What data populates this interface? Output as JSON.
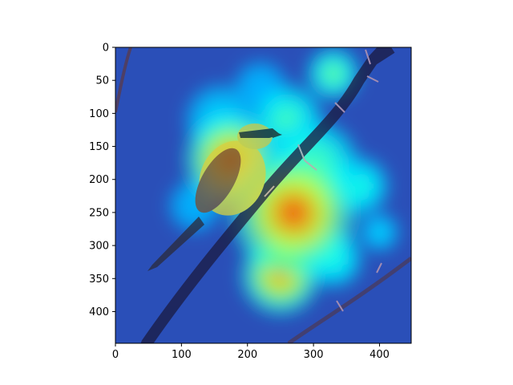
{
  "chart_data": {
    "type": "heatmap",
    "title": "",
    "xlabel": "",
    "ylabel": "",
    "xlim": [
      0,
      448
    ],
    "ylim": [
      448,
      0
    ],
    "x_ticks": [
      0,
      100,
      200,
      300,
      400
    ],
    "y_ticks": [
      0,
      50,
      100,
      150,
      200,
      250,
      300,
      350,
      400
    ],
    "grid": false,
    "colormap": "jet",
    "background_image": "photo of a yellow-breasted shrike perched on a thorny branch",
    "heat_hotspots": [
      {
        "x": 175,
        "y": 170,
        "r": 70,
        "value": 0.9
      },
      {
        "x": 270,
        "y": 250,
        "r": 95,
        "value": 0.95
      },
      {
        "x": 250,
        "y": 345,
        "r": 60,
        "value": 0.85
      },
      {
        "x": 300,
        "y": 180,
        "r": 70,
        "value": 0.55
      },
      {
        "x": 330,
        "y": 40,
        "r": 40,
        "value": 0.55
      },
      {
        "x": 260,
        "y": 110,
        "r": 55,
        "value": 0.5
      },
      {
        "x": 160,
        "y": 110,
        "r": 55,
        "value": 0.35
      },
      {
        "x": 370,
        "y": 210,
        "r": 45,
        "value": 0.45
      },
      {
        "x": 220,
        "y": 60,
        "r": 40,
        "value": 0.3
      },
      {
        "x": 120,
        "y": 240,
        "r": 40,
        "value": 0.3
      },
      {
        "x": 400,
        "y": 280,
        "r": 30,
        "value": 0.35
      },
      {
        "x": 330,
        "y": 320,
        "r": 45,
        "value": 0.45
      }
    ]
  }
}
